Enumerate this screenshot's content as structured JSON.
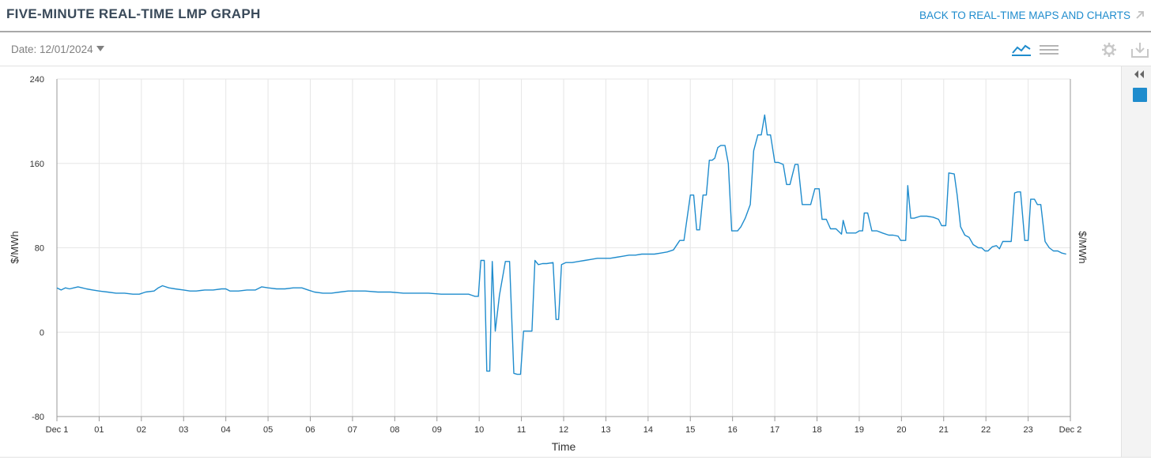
{
  "header": {
    "title": "FIVE-MINUTE REAL-TIME LMP GRAPH",
    "back_link": "BACK TO REAL-TIME MAPS AND CHARTS"
  },
  "toolbar": {
    "date_label": "Date: 12/01/2024"
  },
  "colors": {
    "accent": "#1f8ccd",
    "title": "#3a4a5a",
    "grid": "#e6e6e6",
    "axis": "#999999"
  },
  "icons": [
    "external-link-icon",
    "line-chart-icon",
    "table-view-icon",
    "gear-icon",
    "download-icon",
    "collapse-icon"
  ],
  "chart_data": {
    "type": "line",
    "xlabel": "Time",
    "ylabel": "$/MWh",
    "ylabel_right": "$/MWh",
    "ylim": [
      -80,
      240
    ],
    "yticks": [
      -80,
      0,
      80,
      160,
      240
    ],
    "xlim": [
      0,
      24
    ],
    "xtick_labels": [
      "Dec 1",
      "01",
      "02",
      "03",
      "04",
      "05",
      "06",
      "07",
      "08",
      "09",
      "10",
      "11",
      "12",
      "13",
      "14",
      "15",
      "16",
      "17",
      "18",
      "19",
      "20",
      "21",
      "22",
      "23",
      "Dec 2"
    ],
    "grid": true,
    "series": [
      {
        "color": "#1f8ccd",
        "points": [
          [
            0.0,
            42
          ],
          [
            0.1,
            40
          ],
          [
            0.2,
            42
          ],
          [
            0.3,
            41
          ],
          [
            0.4,
            42
          ],
          [
            0.5,
            43
          ],
          [
            0.6,
            42
          ],
          [
            0.7,
            41
          ],
          [
            0.85,
            40
          ],
          [
            1.0,
            39
          ],
          [
            1.2,
            38
          ],
          [
            1.4,
            37
          ],
          [
            1.6,
            37
          ],
          [
            1.8,
            36
          ],
          [
            1.95,
            36
          ],
          [
            2.1,
            38
          ],
          [
            2.3,
            39
          ],
          [
            2.4,
            42
          ],
          [
            2.5,
            44
          ],
          [
            2.65,
            42
          ],
          [
            2.8,
            41
          ],
          [
            3.0,
            40
          ],
          [
            3.15,
            39
          ],
          [
            3.3,
            39
          ],
          [
            3.5,
            40
          ],
          [
            3.7,
            40
          ],
          [
            3.9,
            41
          ],
          [
            4.0,
            41
          ],
          [
            4.1,
            39
          ],
          [
            4.3,
            39
          ],
          [
            4.5,
            40
          ],
          [
            4.7,
            40
          ],
          [
            4.85,
            43
          ],
          [
            5.0,
            42
          ],
          [
            5.2,
            41
          ],
          [
            5.4,
            41
          ],
          [
            5.6,
            42
          ],
          [
            5.8,
            42
          ],
          [
            5.95,
            40
          ],
          [
            6.1,
            38
          ],
          [
            6.3,
            37
          ],
          [
            6.5,
            37
          ],
          [
            6.7,
            38
          ],
          [
            6.9,
            39
          ],
          [
            7.1,
            39
          ],
          [
            7.3,
            39
          ],
          [
            7.6,
            38
          ],
          [
            7.9,
            38
          ],
          [
            8.2,
            37
          ],
          [
            8.5,
            37
          ],
          [
            8.8,
            37
          ],
          [
            9.1,
            36
          ],
          [
            9.4,
            36
          ],
          [
            9.6,
            36
          ],
          [
            9.75,
            36
          ],
          [
            9.82,
            35
          ],
          [
            9.9,
            34
          ],
          [
            9.98,
            34
          ],
          [
            10.04,
            68
          ],
          [
            10.12,
            68
          ],
          [
            10.18,
            -37
          ],
          [
            10.25,
            -37
          ],
          [
            10.31,
            67
          ],
          [
            10.38,
            1
          ],
          [
            10.48,
            35
          ],
          [
            10.62,
            67
          ],
          [
            10.72,
            67
          ],
          [
            10.82,
            -39
          ],
          [
            10.9,
            -40
          ],
          [
            10.98,
            -40
          ],
          [
            11.05,
            1
          ],
          [
            11.12,
            1
          ],
          [
            11.18,
            1
          ],
          [
            11.25,
            1
          ],
          [
            11.32,
            68
          ],
          [
            11.4,
            64
          ],
          [
            11.5,
            65
          ],
          [
            11.6,
            65
          ],
          [
            11.75,
            66
          ],
          [
            11.82,
            12
          ],
          [
            11.88,
            12
          ],
          [
            11.95,
            64
          ],
          [
            12.05,
            66
          ],
          [
            12.2,
            66
          ],
          [
            12.35,
            67
          ],
          [
            12.5,
            68
          ],
          [
            12.65,
            69
          ],
          [
            12.8,
            70
          ],
          [
            12.95,
            70
          ],
          [
            13.1,
            70
          ],
          [
            13.25,
            71
          ],
          [
            13.4,
            72
          ],
          [
            13.55,
            73
          ],
          [
            13.7,
            73
          ],
          [
            13.85,
            74
          ],
          [
            14.0,
            74
          ],
          [
            14.15,
            74
          ],
          [
            14.3,
            75
          ],
          [
            14.45,
            76
          ],
          [
            14.6,
            78
          ],
          [
            14.75,
            87
          ],
          [
            14.85,
            87
          ],
          [
            15.0,
            130
          ],
          [
            15.08,
            130
          ],
          [
            15.15,
            97
          ],
          [
            15.22,
            97
          ],
          [
            15.3,
            130
          ],
          [
            15.38,
            130
          ],
          [
            15.45,
            163
          ],
          [
            15.52,
            163
          ],
          [
            15.58,
            165
          ],
          [
            15.65,
            175
          ],
          [
            15.72,
            177
          ],
          [
            15.82,
            177
          ],
          [
            15.9,
            160
          ],
          [
            15.98,
            96
          ],
          [
            16.05,
            96
          ],
          [
            16.12,
            96
          ],
          [
            16.2,
            100
          ],
          [
            16.3,
            108
          ],
          [
            16.42,
            121
          ],
          [
            16.5,
            172
          ],
          [
            16.6,
            187
          ],
          [
            16.68,
            187
          ],
          [
            16.76,
            206
          ],
          [
            16.82,
            187
          ],
          [
            16.9,
            187
          ],
          [
            17.0,
            161
          ],
          [
            17.08,
            161
          ],
          [
            17.2,
            159
          ],
          [
            17.28,
            140
          ],
          [
            17.36,
            140
          ],
          [
            17.48,
            159
          ],
          [
            17.55,
            159
          ],
          [
            17.65,
            121
          ],
          [
            17.75,
            121
          ],
          [
            17.85,
            121
          ],
          [
            17.95,
            136
          ],
          [
            18.05,
            136
          ],
          [
            18.12,
            107
          ],
          [
            18.22,
            107
          ],
          [
            18.32,
            98
          ],
          [
            18.45,
            98
          ],
          [
            18.58,
            93
          ],
          [
            18.62,
            106
          ],
          [
            18.7,
            94
          ],
          [
            18.8,
            94
          ],
          [
            18.92,
            94
          ],
          [
            19.0,
            96
          ],
          [
            19.08,
            96
          ],
          [
            19.12,
            113
          ],
          [
            19.2,
            113
          ],
          [
            19.3,
            96
          ],
          [
            19.42,
            96
          ],
          [
            19.55,
            94
          ],
          [
            19.7,
            92
          ],
          [
            19.8,
            92
          ],
          [
            19.92,
            91
          ],
          [
            19.98,
            87
          ],
          [
            20.1,
            87
          ],
          [
            20.15,
            139
          ],
          [
            20.22,
            108
          ],
          [
            20.3,
            108
          ],
          [
            20.45,
            110
          ],
          [
            20.6,
            110
          ],
          [
            20.75,
            109
          ],
          [
            20.88,
            107
          ],
          [
            20.95,
            101
          ],
          [
            21.05,
            101
          ],
          [
            21.12,
            151
          ],
          [
            21.25,
            150
          ],
          [
            21.32,
            130
          ],
          [
            21.4,
            100
          ],
          [
            21.5,
            92
          ],
          [
            21.6,
            90
          ],
          [
            21.7,
            83
          ],
          [
            21.82,
            80
          ],
          [
            21.9,
            80
          ],
          [
            21.98,
            77
          ],
          [
            22.05,
            77
          ],
          [
            22.15,
            81
          ],
          [
            22.25,
            82
          ],
          [
            22.32,
            79
          ],
          [
            22.4,
            86
          ],
          [
            22.5,
            86
          ],
          [
            22.6,
            86
          ],
          [
            22.68,
            132
          ],
          [
            22.75,
            133
          ],
          [
            22.82,
            133
          ],
          [
            22.92,
            87
          ],
          [
            23.0,
            87
          ],
          [
            23.06,
            126
          ],
          [
            23.15,
            126
          ],
          [
            23.22,
            121
          ],
          [
            23.3,
            121
          ],
          [
            23.4,
            86
          ],
          [
            23.5,
            80
          ],
          [
            23.6,
            77
          ],
          [
            23.7,
            77
          ],
          [
            23.8,
            75
          ],
          [
            23.9,
            74
          ]
        ]
      }
    ]
  }
}
